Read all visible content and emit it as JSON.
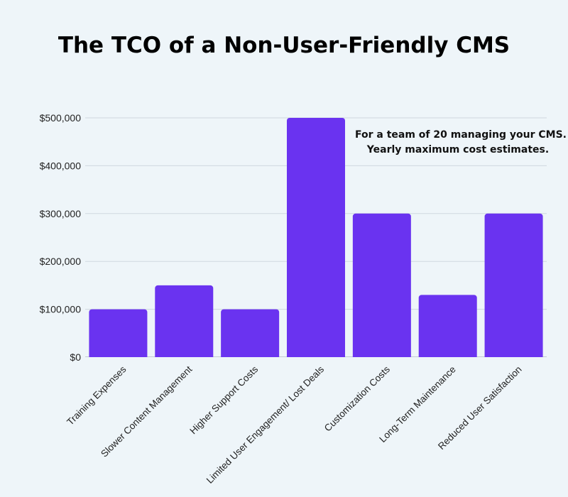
{
  "title": "The TCO of a Non-User-Friendly CMS",
  "annotation": {
    "line1": "For a team of 20 managing your CMS.",
    "line2": "Yearly maximum cost estimates."
  },
  "colors": {
    "bar": "#6a33f0",
    "grid": "#cfd8df",
    "background": "#eef5f9"
  },
  "chart_data": {
    "type": "bar",
    "title": "The TCO of a Non-User-Friendly CMS",
    "xlabel": "",
    "ylabel": "",
    "categories": [
      "Training Expenses",
      "Slower Content Management",
      "Higher Support Costs",
      "Limited User Engagement/ Lost Deals",
      "Customization Costs",
      "Long-Term Maintenance",
      "Reduced User Satisfaction"
    ],
    "values": [
      100000,
      150000,
      100000,
      500000,
      300000,
      130000,
      300000
    ],
    "ylim": [
      0,
      500000
    ],
    "yticks": [
      0,
      100000,
      200000,
      300000,
      400000,
      500000
    ],
    "ytick_labels": [
      "$0",
      "$100,000",
      "$200,000",
      "$300,000",
      "$400,000",
      "$500,000"
    ],
    "grid": true,
    "legend": "none"
  }
}
